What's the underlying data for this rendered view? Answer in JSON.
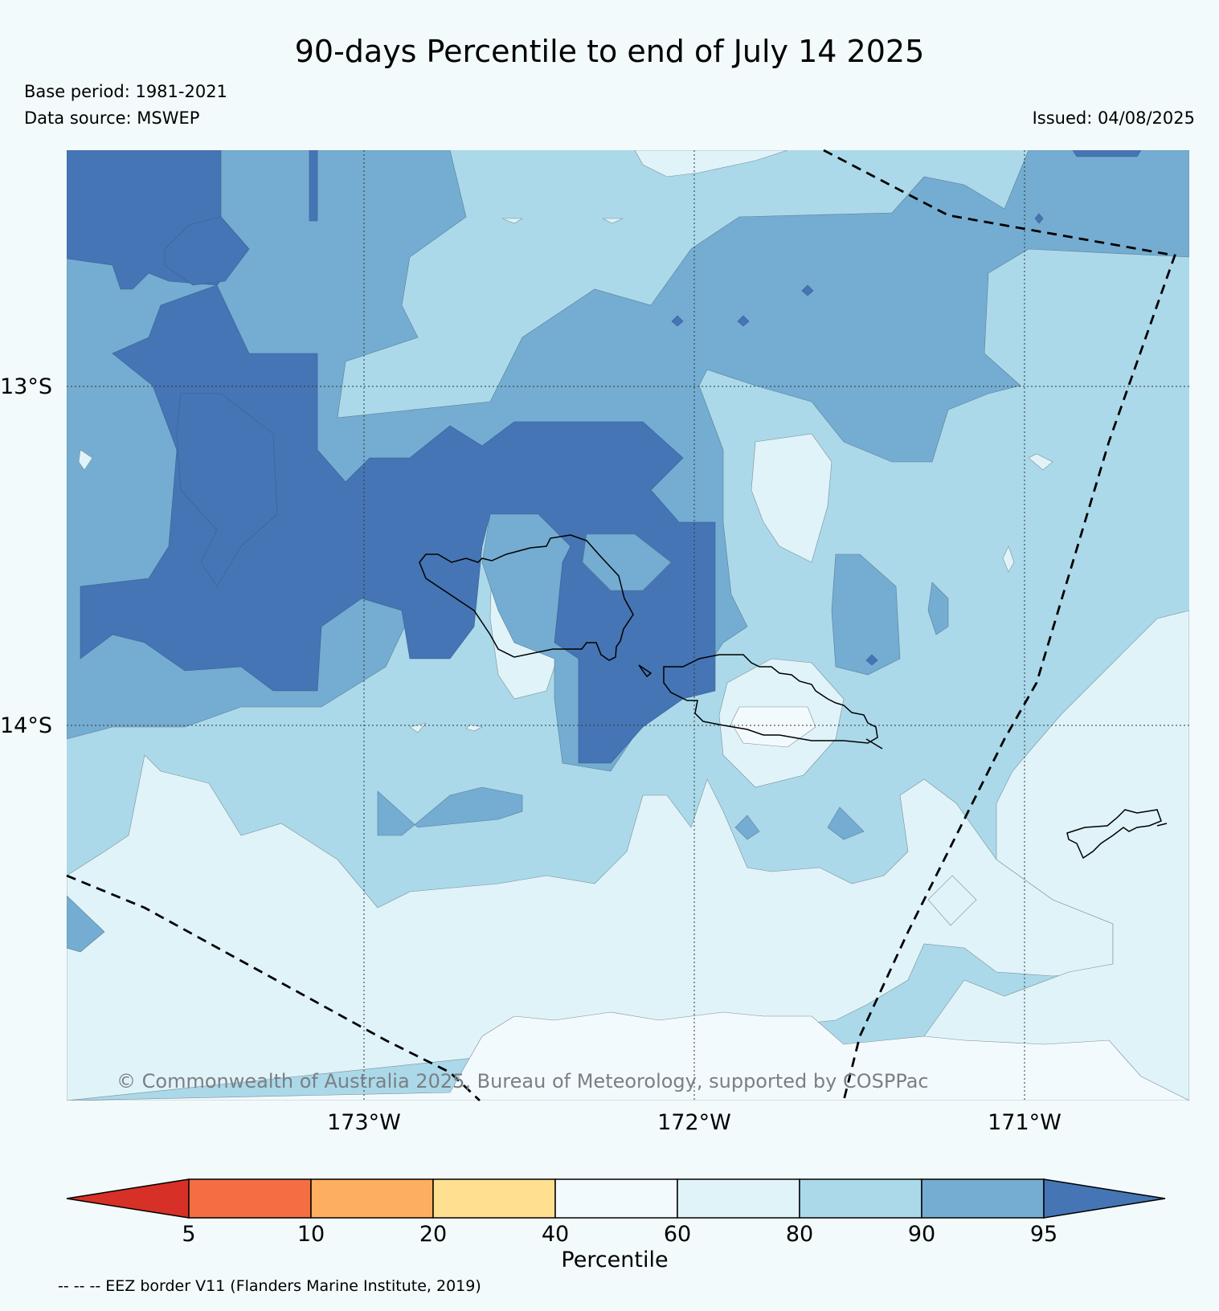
{
  "title": "90-days Percentile to end of July 14 2025",
  "base_period": "Base period: 1981-2021",
  "data_source": "Data source: MSWEP",
  "issued": "Issued: 04/08/2025",
  "copyright": "© Commonwealth of Australia 2025, Bureau of Meteorology, supported by COSPPac",
  "lat_labels": [
    "13°S",
    "14°S"
  ],
  "lon_labels": [
    "173°W",
    "172°W",
    "171°W"
  ],
  "colorbar": {
    "title": "Percentile",
    "ticks": [
      "5",
      "10",
      "20",
      "40",
      "60",
      "80",
      "90",
      "95"
    ],
    "colors": [
      "#d73027",
      "#f46d43",
      "#fdae61",
      "#fee090",
      "#f3fafd",
      "#e0f3f8",
      "#abd9e9",
      "#74add1",
      "#4575b4"
    ]
  },
  "legend_note": "-- -- -- EEZ border V11 (Flanders Marine Institute, 2019)"
}
